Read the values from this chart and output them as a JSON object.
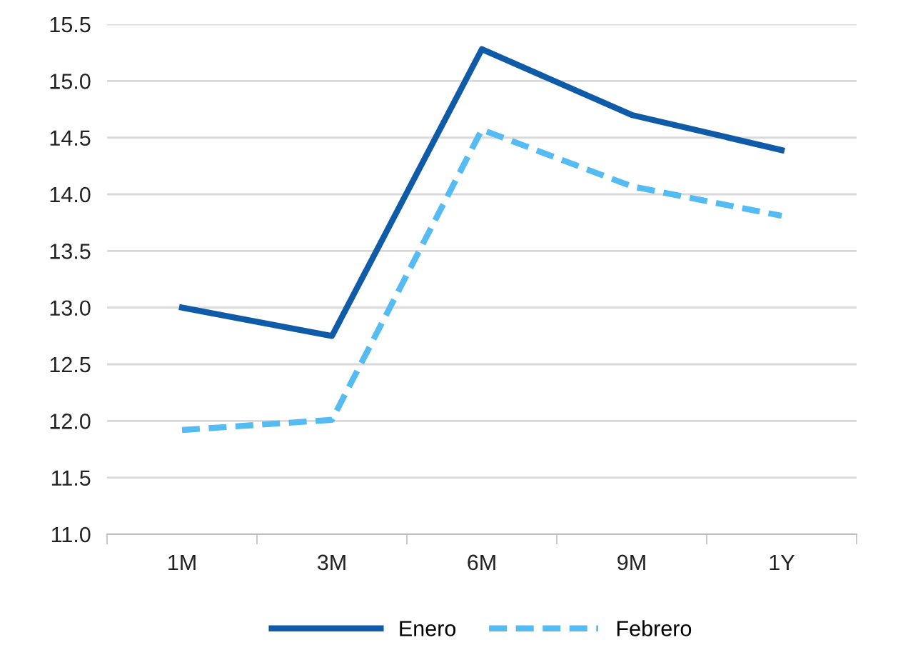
{
  "chart_data": {
    "type": "line",
    "categories": [
      "1M",
      "3M",
      "6M",
      "9M",
      "1Y"
    ],
    "series": [
      {
        "name": "Enero",
        "color": "#0f5ba7",
        "line_style": "solid",
        "values": [
          13.0,
          12.75,
          15.28,
          14.7,
          14.39
        ]
      },
      {
        "name": "Febrero",
        "color": "#55bbf3",
        "line_style": "dashed",
        "values": [
          11.92,
          12.01,
          14.57,
          14.07,
          13.81
        ]
      }
    ],
    "ylim": [
      11.0,
      15.5
    ],
    "yticks": [
      {
        "value": 11.0,
        "label": "11.0"
      },
      {
        "value": 11.5,
        "label": "11.5"
      },
      {
        "value": 12.0,
        "label": "12.0"
      },
      {
        "value": 12.5,
        "label": "12.5"
      },
      {
        "value": 13.0,
        "label": "13.0"
      },
      {
        "value": 13.5,
        "label": "13.5"
      },
      {
        "value": 14.0,
        "label": "14.0"
      },
      {
        "value": 14.5,
        "label": "14.5"
      },
      {
        "value": 15.0,
        "label": "15.0"
      },
      {
        "value": 15.5,
        "label": "15.5"
      }
    ],
    "grid": "y",
    "legend": "bottom",
    "marker": "none"
  }
}
